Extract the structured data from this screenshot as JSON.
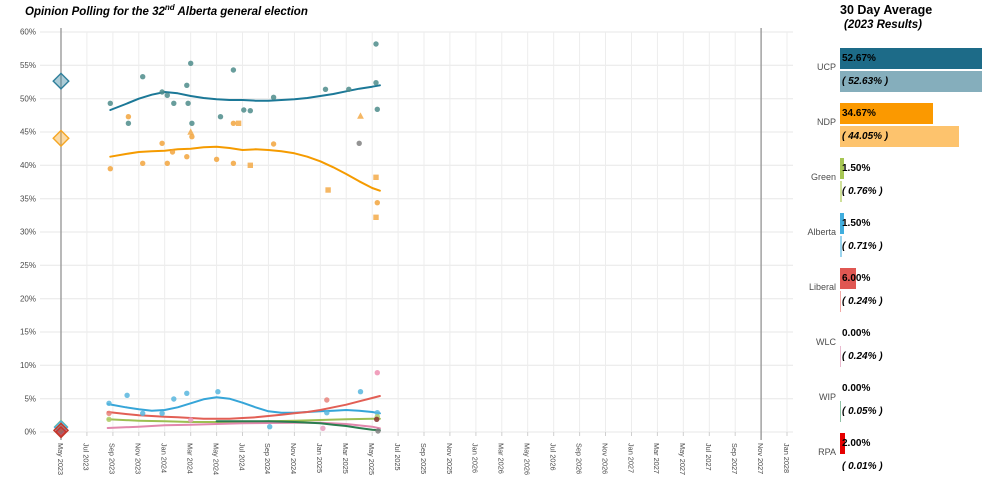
{
  "title": {
    "prefix": "Opinion Polling for the 32",
    "sup": "nd",
    "suffix": " Alberta general election"
  },
  "panel": {
    "title": "30 Day Average",
    "subtitle": "(2023 Results)",
    "parties": [
      {
        "name": "UCP",
        "avg_label": "52.67%",
        "result_label": "( 52.63% )",
        "avg": 52.67,
        "result": 52.63,
        "avg_color": "#1d6b88",
        "result_color": "#85aebc"
      },
      {
        "name": "NDP",
        "avg_label": "34.67%",
        "result_label": "( 44.05% )",
        "avg": 34.67,
        "result": 44.05,
        "avg_color": "#fb9900",
        "result_color": "#fdc36d"
      },
      {
        "name": "Green",
        "avg_label": "1.50%",
        "result_label": "( 0.76% )",
        "avg": 1.5,
        "result": 0.76,
        "avg_color": "#a6c653",
        "result_color": "#cfe09a"
      },
      {
        "name": "Alberta",
        "avg_label": "1.50%",
        "result_label": "( 0.71% )",
        "avg": 1.5,
        "result": 0.71,
        "avg_color": "#41aede",
        "result_color": "#9bd4ee"
      },
      {
        "name": "Liberal",
        "avg_label": "6.00%",
        "result_label": "( 0.24% )",
        "avg": 6.0,
        "result": 0.24,
        "avg_color": "#e05752",
        "result_color": "#f2aaa6"
      },
      {
        "name": "WLC",
        "avg_label": "0.00%",
        "result_label": "( 0.24% )",
        "avg": 0.0,
        "result": 0.24,
        "avg_color": "#e287ad",
        "result_color": "#e9bacf"
      },
      {
        "name": "WIP",
        "avg_label": "0.00%",
        "result_label": "( 0.05% )",
        "avg": 0.0,
        "result": 0.05,
        "avg_color": "#2a7d4f",
        "result_color": "#8fc2a6"
      },
      {
        "name": "RPA",
        "avg_label": "2.00%",
        "result_label": "( 0.01% )",
        "avg": 2.0,
        "result": 0.01,
        "avg_color": "#e60000",
        "result_color": "#f08080"
      }
    ]
  },
  "chart_data": {
    "type": "scatter",
    "title": "Opinion Polling for the 32nd Alberta general election",
    "xlabel": "",
    "ylabel": "",
    "grid": true,
    "x_axis": {
      "unit": "months since May 2023",
      "range_months": [
        0,
        56
      ],
      "months_per_tick": 2,
      "labels": [
        "May 2023",
        "Jul 2023",
        "Sep 2023",
        "Nov 2023",
        "Jan 2024",
        "Mar 2024",
        "May 2024",
        "Jul 2024",
        "Sep 2024",
        "Nov 2024",
        "Jan 2025",
        "Mar 2025",
        "May 2025",
        "Jul 2025",
        "Sep 2025",
        "Nov 2025",
        "Jan 2026",
        "Mar 2026",
        "May 2026",
        "Jul 2026",
        "Sep 2026",
        "Nov 2026",
        "Jan 2027",
        "Mar 2027",
        "May 2027",
        "Jul 2027",
        "Sep 2027",
        "Nov 2027",
        "Jan 2028"
      ]
    },
    "y_axis": {
      "min": 0,
      "max": 60,
      "step": 5,
      "tick_labels": [
        "0%",
        "5%",
        "10%",
        "15%",
        "20%",
        "25%",
        "30%",
        "35%",
        "40%",
        "45%",
        "50%",
        "55%",
        "60%"
      ]
    },
    "election_markers": [
      {
        "label": "May 2023",
        "month": 0
      },
      {
        "label": "Nov 2027",
        "month": 54
      }
    ],
    "result_markers": [
      {
        "key": "wip",
        "value": 0.05,
        "color": "#2a7d4f",
        "size": 7
      },
      {
        "key": "wlc",
        "value": 0.24,
        "color": "#e287ad",
        "size": 7
      },
      {
        "key": "green",
        "value": 0.76,
        "color": "#9dbf52",
        "size": 9
      },
      {
        "key": "alberta",
        "value": 0.71,
        "color": "#49b2dd",
        "size": 9
      },
      {
        "key": "rpa",
        "value": 0.01,
        "color": "#d42a2a",
        "size": 7
      },
      {
        "key": "liberal",
        "value": 0.24,
        "color": "#c0392b",
        "size": 10
      },
      {
        "key": "ndp",
        "value": 44.05,
        "color": "#f5a623",
        "size": 11
      },
      {
        "key": "ucp",
        "value": 52.63,
        "color": "#2f7f9b",
        "size": 11
      }
    ],
    "series": [
      {
        "key": "ucp",
        "name": "UCP",
        "color_line": "#1b7897",
        "color_point": "#4e8c8b",
        "points": [
          [
            3.8,
            49.3
          ],
          [
            5.2,
            46.3
          ],
          [
            6.3,
            53.3
          ],
          [
            7.8,
            51.0
          ],
          [
            8.2,
            50.5
          ],
          [
            8.7,
            49.3
          ],
          [
            9.7,
            52.0
          ],
          [
            9.8,
            49.3
          ],
          [
            10.0,
            55.3
          ],
          [
            10.1,
            46.3
          ],
          [
            12.3,
            47.3
          ],
          [
            13.3,
            54.3
          ],
          [
            14.1,
            48.3
          ],
          [
            14.6,
            48.2
          ],
          [
            16.4,
            50.2
          ],
          [
            20.4,
            51.4
          ],
          [
            22.2,
            51.4
          ],
          [
            24.3,
            58.2
          ],
          [
            24.3,
            52.4
          ],
          [
            24.4,
            48.4
          ]
        ],
        "line": [
          [
            3.8,
            48.3
          ],
          [
            5,
            49.2
          ],
          [
            6,
            50.0
          ],
          [
            7,
            50.6
          ],
          [
            8,
            51.0
          ],
          [
            9,
            50.8
          ],
          [
            10,
            50.4
          ],
          [
            11,
            50.1
          ],
          [
            12,
            49.9
          ],
          [
            13,
            49.8
          ],
          [
            14,
            49.8
          ],
          [
            15,
            49.7
          ],
          [
            16,
            49.7
          ],
          [
            17,
            49.8
          ],
          [
            18,
            49.9
          ],
          [
            19,
            50.1
          ],
          [
            20,
            50.4
          ],
          [
            21,
            50.7
          ],
          [
            22,
            51.1
          ],
          [
            23,
            51.5
          ],
          [
            24,
            51.8
          ],
          [
            24.6,
            52.0
          ]
        ]
      },
      {
        "key": "ndp",
        "name": "NDP",
        "color_line": "#f59b00",
        "color_point": "#f2a53d",
        "points": [
          [
            3.8,
            39.5
          ],
          [
            5.2,
            47.3
          ],
          [
            6.3,
            40.3
          ],
          [
            7.8,
            43.3
          ],
          [
            8.2,
            40.3
          ],
          [
            8.6,
            42.0
          ],
          [
            9.7,
            41.3
          ],
          [
            10.0,
            45.0,
            "triangle"
          ],
          [
            10.1,
            44.3
          ],
          [
            12.0,
            40.9
          ],
          [
            13.3,
            46.3
          ],
          [
            13.3,
            40.3
          ],
          [
            13.7,
            46.3,
            "square"
          ],
          [
            14.6,
            40.0,
            "square"
          ],
          [
            16.4,
            43.2
          ],
          [
            20.6,
            36.3,
            "square"
          ],
          [
            23.1,
            47.4,
            "triangle"
          ],
          [
            24.3,
            38.2,
            "square"
          ],
          [
            24.4,
            34.4
          ],
          [
            24.3,
            32.2,
            "square"
          ]
        ],
        "line": [
          [
            3.8,
            41.3
          ],
          [
            5,
            41.7
          ],
          [
            6,
            42.0
          ],
          [
            7,
            42.1
          ],
          [
            8,
            42.2
          ],
          [
            9,
            42.4
          ],
          [
            10,
            42.5
          ],
          [
            11,
            42.7
          ],
          [
            12,
            42.8
          ],
          [
            13,
            42.6
          ],
          [
            14,
            42.3
          ],
          [
            15,
            42.4
          ],
          [
            16,
            42.3
          ],
          [
            17,
            42.1
          ],
          [
            18,
            41.8
          ],
          [
            19,
            41.3
          ],
          [
            20,
            40.6
          ],
          [
            21,
            39.7
          ],
          [
            22,
            38.7
          ],
          [
            23,
            37.6
          ],
          [
            24,
            36.6
          ],
          [
            24.6,
            36.2
          ]
        ]
      },
      {
        "key": "alberta",
        "name": "Alberta",
        "color_line": "#36a5d8",
        "color_point": "#58b6de",
        "points": [
          [
            3.7,
            4.3
          ],
          [
            5.1,
            5.5
          ],
          [
            6.3,
            2.8
          ],
          [
            7.8,
            2.8
          ],
          [
            8.7,
            4.95
          ],
          [
            9.7,
            5.8
          ],
          [
            12.1,
            6.05
          ],
          [
            16.1,
            0.8
          ],
          [
            20.5,
            2.9
          ],
          [
            23.1,
            6.05
          ],
          [
            24.4,
            2.9
          ]
        ],
        "line": [
          [
            3.6,
            4.2
          ],
          [
            5,
            3.7
          ],
          [
            6,
            3.4
          ],
          [
            7,
            3.2
          ],
          [
            8,
            3.3
          ],
          [
            9,
            3.7
          ],
          [
            10,
            4.3
          ],
          [
            11,
            4.9
          ],
          [
            12,
            5.2
          ],
          [
            13,
            5.0
          ],
          [
            14,
            4.4
          ],
          [
            15,
            3.7
          ],
          [
            16,
            3.1
          ],
          [
            17,
            2.9
          ],
          [
            18,
            2.9
          ],
          [
            19,
            3.0
          ],
          [
            20,
            3.1
          ],
          [
            21,
            3.2
          ],
          [
            22,
            3.3
          ],
          [
            23,
            3.2
          ],
          [
            24,
            3.0
          ],
          [
            24.6,
            2.8
          ]
        ]
      },
      {
        "key": "liberal",
        "name": "Liberal",
        "color_line": "#e25f55",
        "color_point": "#e8837b",
        "points": [
          [
            3.7,
            2.8
          ],
          [
            20.5,
            4.8
          ]
        ],
        "line": [
          [
            3.6,
            3.0
          ],
          [
            5,
            2.7
          ],
          [
            6,
            2.5
          ],
          [
            7,
            2.4
          ],
          [
            8,
            2.3
          ],
          [
            9,
            2.2
          ],
          [
            10,
            2.1
          ],
          [
            11,
            2.0
          ],
          [
            12,
            2.0
          ],
          [
            13,
            2.0
          ],
          [
            14,
            2.1
          ],
          [
            15,
            2.2
          ],
          [
            16,
            2.4
          ],
          [
            17,
            2.6
          ],
          [
            18,
            2.8
          ],
          [
            19,
            3.0
          ],
          [
            20,
            3.3
          ],
          [
            21,
            3.7
          ],
          [
            22,
            4.1
          ],
          [
            23,
            4.6
          ],
          [
            24,
            5.1
          ],
          [
            24.6,
            5.4
          ]
        ]
      },
      {
        "key": "green",
        "name": "Green",
        "color_line": "#9dbf52",
        "color_point": "#b3cc6a",
        "points": [
          [
            3.7,
            1.9
          ],
          [
            24.4,
            2.3
          ]
        ],
        "line": [
          [
            3.6,
            1.9
          ],
          [
            6,
            1.7
          ],
          [
            8,
            1.6
          ],
          [
            10,
            1.5
          ],
          [
            12,
            1.5
          ],
          [
            14,
            1.5
          ],
          [
            16,
            1.6
          ],
          [
            18,
            1.7
          ],
          [
            20,
            1.8
          ],
          [
            22,
            1.9
          ],
          [
            24,
            2.0
          ],
          [
            24.6,
            2.0
          ]
        ]
      },
      {
        "key": "wlc",
        "name": "WLC",
        "color_line": "#e287ad",
        "color_point": "#e79dbd",
        "points": [
          [
            10.0,
            1.8
          ],
          [
            20.2,
            0.55
          ]
        ],
        "line": [
          [
            3.6,
            0.6
          ],
          [
            6,
            0.8
          ],
          [
            8,
            1.0
          ],
          [
            10,
            1.1
          ],
          [
            12,
            1.2
          ],
          [
            14,
            1.3
          ],
          [
            16,
            1.35
          ],
          [
            18,
            1.4
          ],
          [
            20,
            1.4
          ],
          [
            22,
            1.2
          ],
          [
            24,
            0.8
          ],
          [
            24.6,
            0.55
          ]
        ]
      },
      {
        "key": "wip",
        "name": "WIP",
        "color_line": "#2a7d4f",
        "color_point": "#2a7d4f",
        "points": [],
        "line": [
          [
            12,
            1.6
          ],
          [
            14,
            1.6
          ],
          [
            16,
            1.6
          ],
          [
            18,
            1.5
          ],
          [
            20,
            1.3
          ],
          [
            21,
            1.1
          ],
          [
            22,
            0.9
          ],
          [
            23,
            0.6
          ],
          [
            24,
            0.35
          ],
          [
            24.6,
            0.25
          ]
        ]
      },
      {
        "key": "rpa",
        "name": "RPA",
        "color_line": null,
        "color_point": "#8b2f2f",
        "points": [
          [
            24.35,
            1.9
          ]
        ],
        "line": []
      }
    ],
    "extra_points": [
      {
        "m": 23.0,
        "v": 43.3,
        "color": "#808080"
      },
      {
        "m": 24.45,
        "v": 0.15,
        "color": "#808080"
      },
      {
        "m": 24.4,
        "v": 8.9,
        "color": "#ef8fb1"
      }
    ]
  }
}
